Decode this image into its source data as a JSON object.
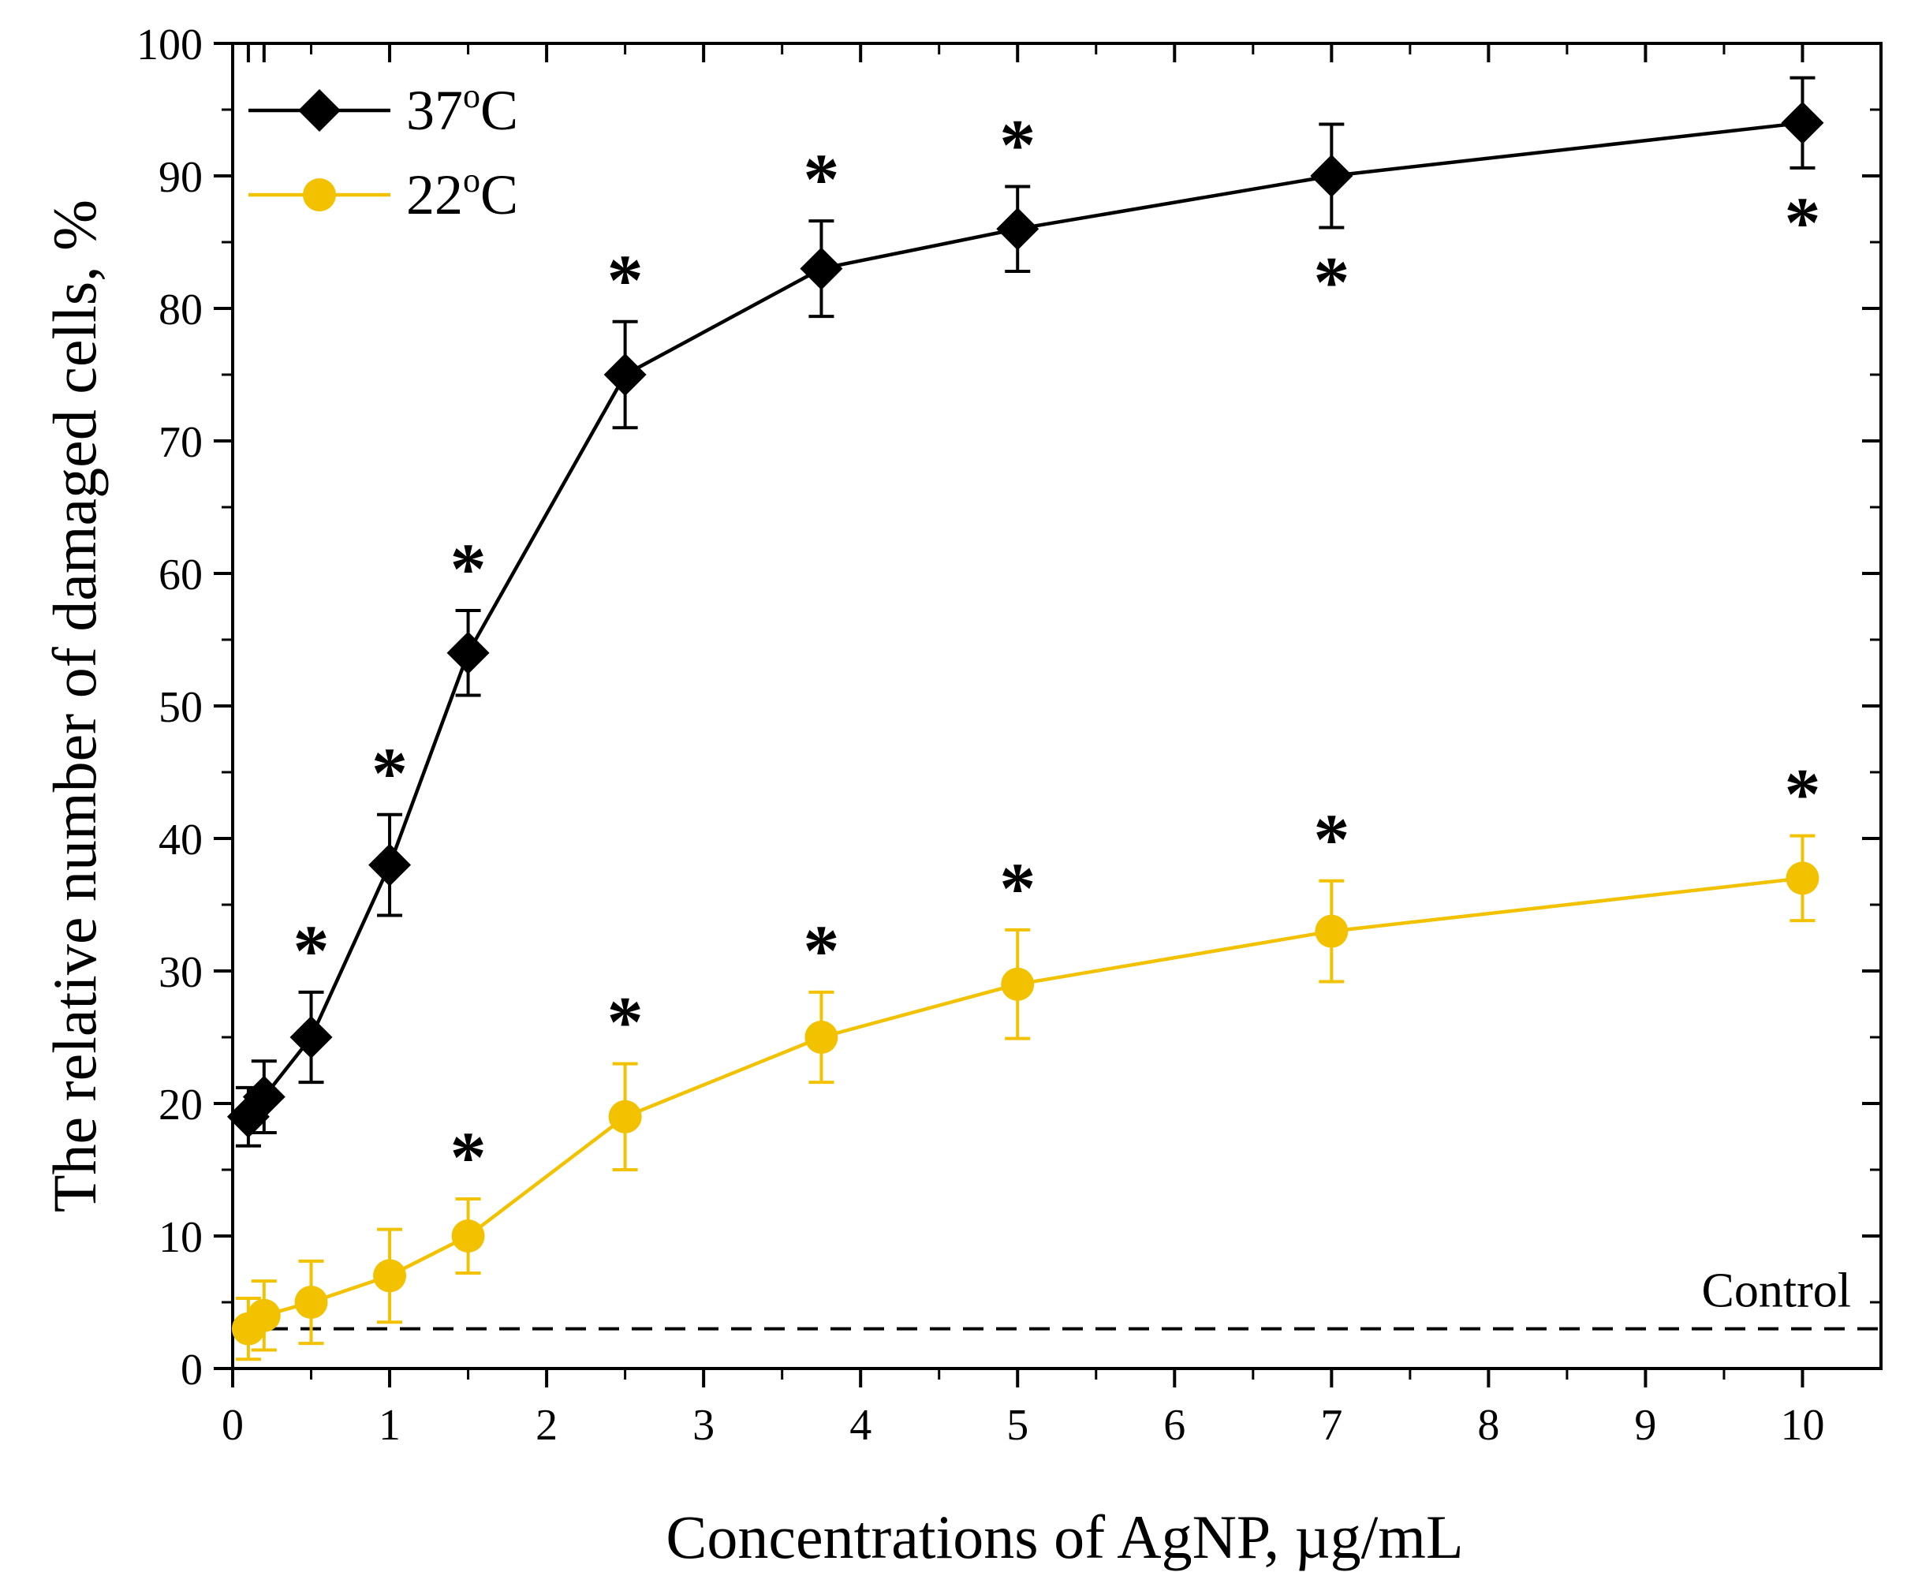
{
  "chart_data": {
    "type": "line",
    "title": "",
    "xlabel": "Concentrations of AgNP, µg/mL",
    "ylabel": "The relative number of damaged cells, %",
    "xlim": [
      0,
      10.5
    ],
    "ylim": [
      0,
      100
    ],
    "x_ticks": [
      0,
      1,
      2,
      3,
      4,
      5,
      6,
      7,
      8,
      9,
      10
    ],
    "y_ticks": [
      0,
      10,
      20,
      30,
      40,
      50,
      60,
      70,
      80,
      90,
      100
    ],
    "legend_position": "top-left",
    "colors": {
      "s37": "#000000",
      "s22": "#F2C200",
      "axis": "#000000"
    },
    "series": [
      {
        "name": "37°C",
        "legend_main": "37",
        "legend_sup": "o",
        "legend_unit": "C",
        "marker": "diamond",
        "x": [
          0.1,
          0.2,
          0.5,
          1.0,
          1.5,
          2.5,
          3.75,
          5.0,
          7.0,
          10.0
        ],
        "y": [
          19,
          20.5,
          25,
          38,
          54,
          75,
          83,
          86,
          90,
          94
        ],
        "err": [
          2.2,
          2.7,
          3.4,
          3.8,
          3.2,
          4.0,
          3.6,
          3.2,
          3.9,
          3.4
        ],
        "significant": [
          false,
          false,
          true,
          true,
          true,
          true,
          true,
          true,
          true,
          true
        ],
        "star_position": [
          "above",
          "above",
          "above",
          "above",
          "above",
          "above",
          "above",
          "above",
          "below",
          "below"
        ]
      },
      {
        "name": "22°C",
        "legend_main": "22",
        "legend_sup": "o",
        "legend_unit": "C",
        "marker": "circle",
        "x": [
          0.1,
          0.2,
          0.5,
          1.0,
          1.5,
          2.5,
          3.75,
          5.0,
          7.0,
          10.0
        ],
        "y": [
          3,
          4,
          5,
          7,
          10,
          19,
          25,
          29,
          33,
          37
        ],
        "err": [
          2.3,
          2.6,
          3.1,
          3.5,
          2.8,
          4.0,
          3.4,
          4.1,
          3.8,
          3.2
        ],
        "significant": [
          false,
          false,
          false,
          false,
          true,
          true,
          true,
          true,
          true,
          true
        ],
        "star_position": [
          "above",
          "above",
          "above",
          "above",
          "above",
          "above",
          "above",
          "above",
          "above",
          "above"
        ]
      }
    ],
    "reference_line": {
      "label": "Control",
      "y": 3,
      "style": "dashed"
    },
    "significance_marker": "*"
  }
}
